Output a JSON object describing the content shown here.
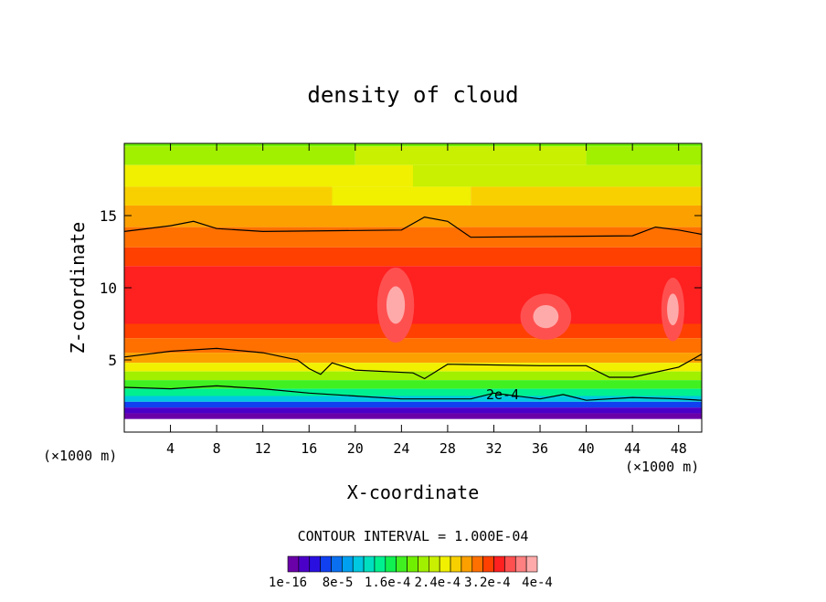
{
  "chart_data": {
    "type": "heatmap",
    "title": "density of cloud",
    "xlabel": "X-coordinate",
    "ylabel": "Z-coordinate",
    "x_unit": "(×1000 m)",
    "x_unit_right": "(×1000 m)",
    "xlim": [
      0,
      50
    ],
    "ylim": [
      0,
      20
    ],
    "x_ticks": [
      4,
      8,
      12,
      16,
      20,
      24,
      28,
      32,
      36,
      40,
      44,
      48
    ],
    "y_ticks": [
      5,
      10,
      15
    ],
    "contour_interval_text": "CONTOUR INTERVAL = 1.000E-04",
    "contour_label": "2e-4",
    "colorbar_labels": [
      "1e-16",
      "8e-5",
      "1.6e-4",
      "2.4e-4",
      "3.2e-4",
      "4e-4"
    ],
    "colorbar_values": [
      0,
      8e-05,
      0.00016,
      0.00024,
      0.00032,
      0.0004
    ],
    "colormap": [
      "#6a00a8",
      "#4b00c8",
      "#2a10e0",
      "#1040f0",
      "#0a70f0",
      "#00a0f0",
      "#00c8e0",
      "#00e0c0",
      "#00f090",
      "#10f050",
      "#40f020",
      "#70f000",
      "#a0f000",
      "#c8f000",
      "#f0f000",
      "#f8d000",
      "#fca000",
      "#ff7000",
      "#ff4000",
      "#ff2020",
      "#ff5050",
      "#ff8080",
      "#ffaaaa"
    ],
    "contour_lines_z": [
      {
        "x": [
          0,
          4,
          6,
          8,
          12,
          24,
          26,
          28,
          30,
          44,
          46,
          48,
          50
        ],
        "z": [
          13.9,
          14.3,
          14.6,
          14.1,
          13.9,
          14.0,
          14.9,
          14.6,
          13.5,
          13.6,
          14.2,
          14.0,
          13.7
        ]
      },
      {
        "x": [
          0,
          4,
          8,
          12,
          15,
          16,
          17,
          18,
          20,
          25,
          26,
          28,
          36,
          40,
          42,
          44,
          48,
          50
        ],
        "z": [
          5.2,
          5.6,
          5.8,
          5.5,
          5.0,
          4.4,
          4.0,
          4.8,
          4.3,
          4.1,
          3.7,
          4.7,
          4.6,
          4.6,
          3.8,
          3.8,
          4.5,
          5.4
        ]
      },
      {
        "x": [
          0,
          4,
          8,
          12,
          16,
          20,
          24,
          30,
          32,
          36,
          38,
          40,
          44,
          48,
          50
        ],
        "z": [
          3.1,
          3.0,
          3.2,
          3.0,
          2.7,
          2.5,
          2.3,
          2.3,
          2.7,
          2.3,
          2.6,
          2.2,
          2.4,
          2.3,
          2.2
        ]
      }
    ],
    "field_bands": [
      {
        "z": 19.8,
        "colors": [
          [
            "#70f000",
            0
          ],
          [
            "#70f000",
            50
          ]
        ]
      },
      {
        "z": 18.5,
        "colors": [
          [
            "#a0f000",
            0
          ],
          [
            "#c8f000",
            20
          ],
          [
            "#a0f000",
            40
          ]
        ]
      },
      {
        "z": 17,
        "colors": [
          [
            "#f0f000",
            0
          ],
          [
            "#c8f000",
            25
          ]
        ]
      },
      {
        "z": 15.7,
        "colors": [
          [
            "#f8d000",
            0
          ],
          [
            "#f0f000",
            18
          ],
          [
            "#f8d000",
            30
          ]
        ]
      },
      {
        "z": 14.2,
        "colors": [
          [
            "#fca000",
            0
          ]
        ]
      },
      {
        "z": 12.8,
        "colors": [
          [
            "#ff7000",
            0
          ]
        ]
      },
      {
        "z": 11.5,
        "colors": [
          [
            "#ff4000",
            0
          ]
        ]
      },
      {
        "z": 7.5,
        "colors": [
          [
            "#ff2020",
            0
          ]
        ]
      },
      {
        "z": 6.5,
        "colors": [
          [
            "#ff4000",
            0
          ]
        ]
      },
      {
        "z": 5.5,
        "colors": [
          [
            "#ff7000",
            0
          ]
        ]
      },
      {
        "z": 4.8,
        "colors": [
          [
            "#fca000",
            0
          ]
        ]
      },
      {
        "z": 4.2,
        "colors": [
          [
            "#f0f000",
            0
          ]
        ]
      },
      {
        "z": 3.6,
        "colors": [
          [
            "#a0f000",
            0
          ]
        ]
      },
      {
        "z": 3.0,
        "colors": [
          [
            "#40f020",
            0
          ]
        ]
      },
      {
        "z": 2.5,
        "colors": [
          [
            "#00f090",
            0
          ]
        ]
      },
      {
        "z": 2.1,
        "colors": [
          [
            "#00c8e0",
            0
          ]
        ]
      },
      {
        "z": 1.7,
        "colors": [
          [
            "#1040f0",
            0
          ]
        ]
      },
      {
        "z": 1.3,
        "colors": [
          [
            "#4b00c8",
            0
          ]
        ]
      },
      {
        "z": 0.9,
        "colors": [
          [
            "#6a00a8",
            0
          ]
        ]
      }
    ],
    "maxima": [
      {
        "x": 23.5,
        "z": 8.8,
        "rx": 1.6,
        "rz": 2.6
      },
      {
        "x": 36.5,
        "z": 8.0,
        "rx": 2.2,
        "rz": 1.6
      },
      {
        "x": 47.5,
        "z": 8.5,
        "rx": 1.0,
        "rz": 2.2
      }
    ]
  }
}
